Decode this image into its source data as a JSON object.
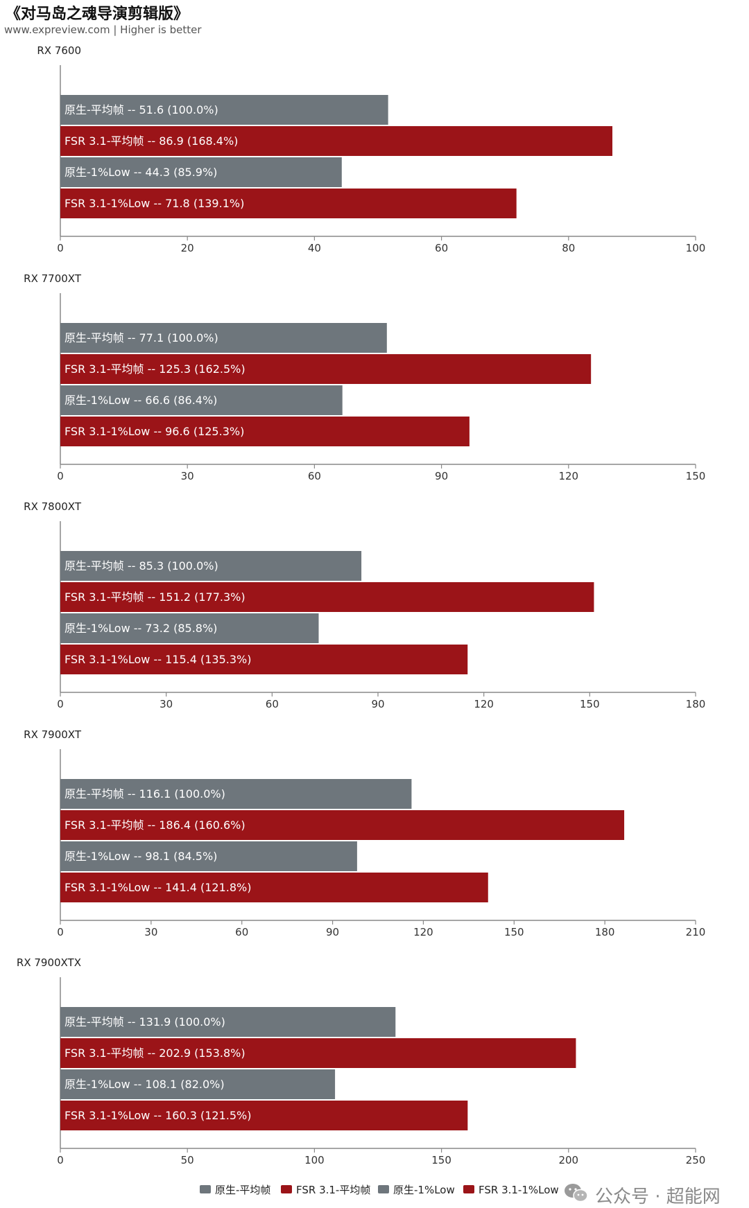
{
  "header": {
    "title": "《对马岛之魂导演剪辑版》",
    "subtitle": "www.expreview.com | Higher is better"
  },
  "watermark": {
    "text": "公众号 · 超能网",
    "icon": "wechat-icon"
  },
  "colors": {
    "native": "#6e767c",
    "fsr": "#9b1418",
    "axis": "#888888"
  },
  "chart_data": {
    "type": "bar",
    "orientation": "horizontal",
    "legend_position": "bottom",
    "series_names": [
      "原生-平均帧",
      "FSR 3.1-平均帧",
      "原生-1%Low",
      "FSR 3.1-1%Low"
    ],
    "panels": [
      {
        "gpu": "RX 7600",
        "xlim": [
          0,
          100
        ],
        "ticks": [
          0,
          20,
          40,
          60,
          80,
          100
        ],
        "bars": [
          {
            "series": "原生-平均帧",
            "value": 51.6,
            "label": "原生-平均帧  --  51.6 (100.0%)"
          },
          {
            "series": "FSR 3.1-平均帧",
            "value": 86.9,
            "label": "FSR 3.1-平均帧  --  86.9 (168.4%)"
          },
          {
            "series": "原生-1%Low",
            "value": 44.3,
            "label": "原生-1%Low  --  44.3 (85.9%)"
          },
          {
            "series": "FSR 3.1-1%Low",
            "value": 71.8,
            "label": "FSR 3.1-1%Low  --  71.8 (139.1%)"
          }
        ]
      },
      {
        "gpu": "RX 7700XT",
        "xlim": [
          0,
          150
        ],
        "ticks": [
          0,
          30,
          60,
          90,
          120,
          150
        ],
        "bars": [
          {
            "series": "原生-平均帧",
            "value": 77.1,
            "label": "原生-平均帧  --  77.1 (100.0%)"
          },
          {
            "series": "FSR 3.1-平均帧",
            "value": 125.3,
            "label": "FSR 3.1-平均帧  --  125.3 (162.5%)"
          },
          {
            "series": "原生-1%Low",
            "value": 66.6,
            "label": "原生-1%Low  --  66.6 (86.4%)"
          },
          {
            "series": "FSR 3.1-1%Low",
            "value": 96.6,
            "label": "FSR 3.1-1%Low  --  96.6 (125.3%)"
          }
        ]
      },
      {
        "gpu": "RX 7800XT",
        "xlim": [
          0,
          180
        ],
        "ticks": [
          0,
          30,
          60,
          90,
          120,
          150,
          180
        ],
        "bars": [
          {
            "series": "原生-平均帧",
            "value": 85.3,
            "label": "原生-平均帧  --  85.3 (100.0%)"
          },
          {
            "series": "FSR 3.1-平均帧",
            "value": 151.2,
            "label": "FSR 3.1-平均帧  --  151.2 (177.3%)"
          },
          {
            "series": "原生-1%Low",
            "value": 73.2,
            "label": "原生-1%Low  --  73.2 (85.8%)"
          },
          {
            "series": "FSR 3.1-1%Low",
            "value": 115.4,
            "label": "FSR 3.1-1%Low  --  115.4 (135.3%)"
          }
        ]
      },
      {
        "gpu": "RX 7900XT",
        "xlim": [
          0,
          210
        ],
        "ticks": [
          0,
          30,
          60,
          90,
          120,
          150,
          180,
          210
        ],
        "bars": [
          {
            "series": "原生-平均帧",
            "value": 116.1,
            "label": "原生-平均帧  --  116.1 (100.0%)"
          },
          {
            "series": "FSR 3.1-平均帧",
            "value": 186.4,
            "label": "FSR 3.1-平均帧  --  186.4 (160.6%)"
          },
          {
            "series": "原生-1%Low",
            "value": 98.1,
            "label": "原生-1%Low  --  98.1 (84.5%)"
          },
          {
            "series": "FSR 3.1-1%Low",
            "value": 141.4,
            "label": "FSR 3.1-1%Low  --  141.4 (121.8%)"
          }
        ]
      },
      {
        "gpu": "RX 7900XTX",
        "xlim": [
          0,
          250
        ],
        "ticks": [
          0,
          50,
          100,
          150,
          200,
          250
        ],
        "bars": [
          {
            "series": "原生-平均帧",
            "value": 131.9,
            "label": "原生-平均帧  --  131.9 (100.0%)"
          },
          {
            "series": "FSR 3.1-平均帧",
            "value": 202.9,
            "label": "FSR 3.1-平均帧  --  202.9 (153.8%)"
          },
          {
            "series": "原生-1%Low",
            "value": 108.1,
            "label": "原生-1%Low  --  108.1 (82.0%)"
          },
          {
            "series": "FSR 3.1-1%Low",
            "value": 160.3,
            "label": "FSR 3.1-1%Low  --  160.3 (121.5%)"
          }
        ]
      }
    ]
  }
}
